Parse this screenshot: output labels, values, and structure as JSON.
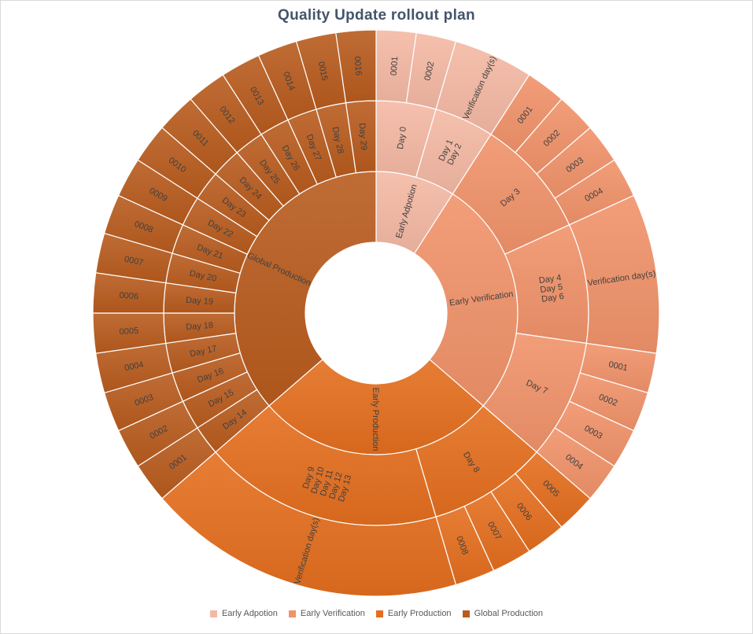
{
  "chart_data": {
    "type": "sunburst",
    "title": "Quality Update rollout plan",
    "legend": {
      "placement": "bottom",
      "entries": [
        "Early Adpotion",
        "Early Verification",
        "Early Production",
        "Global Production"
      ]
    },
    "colors": {
      "Early Adpotion": "#f4b9a4",
      "Early Verification": "#f0936a",
      "Early Production": "#e46f1f",
      "Global Production": "#b85c1e"
    },
    "tree": [
      {
        "name": "Early Adpotion",
        "value": 4,
        "color": "#f4b9a4",
        "children": [
          {
            "name": "Day 0",
            "value": 2,
            "children": [
              {
                "name": "0001",
                "value": 1
              },
              {
                "name": "0002",
                "value": 1
              }
            ]
          },
          {
            "name": "Day 1\nDay 2",
            "value": 2,
            "children": [
              {
                "name": "Verification day(s)",
                "value": 2
              }
            ]
          }
        ]
      },
      {
        "name": "Early Verification",
        "value": 12,
        "color": "#f0936a",
        "children": [
          {
            "name": "Day 3",
            "value": 4,
            "children": [
              {
                "name": "0001",
                "value": 1
              },
              {
                "name": "0002",
                "value": 1
              },
              {
                "name": "0003",
                "value": 1
              },
              {
                "name": "0004",
                "value": 1
              }
            ]
          },
          {
            "name": "Day 4\nDay 5\nDay 6",
            "value": 4,
            "children": [
              {
                "name": "Verification day(s)",
                "value": 4
              }
            ]
          },
          {
            "name": "Day 7",
            "value": 4,
            "children": [
              {
                "name": "0001",
                "value": 1
              },
              {
                "name": "0002",
                "value": 1
              },
              {
                "name": "0003",
                "value": 1
              },
              {
                "name": "0004",
                "value": 1
              }
            ]
          }
        ]
      },
      {
        "name": "Early Production",
        "value": 12,
        "color": "#e46f1f",
        "children": [
          {
            "name": "Day 8",
            "value": 4,
            "children": [
              {
                "name": "0005",
                "value": 1
              },
              {
                "name": "0006",
                "value": 1
              },
              {
                "name": "0007",
                "value": 1
              },
              {
                "name": "0008",
                "value": 1
              }
            ]
          },
          {
            "name": "Day 9\nDay 10\nDay 11\nDay 12\nDay 13",
            "value": 8,
            "children": [
              {
                "name": "Verification day(s)",
                "value": 8
              }
            ]
          }
        ]
      },
      {
        "name": "Global Production",
        "value": 16,
        "color": "#b85c1e",
        "children": [
          {
            "name": "Day 14",
            "value": 1,
            "children": [
              {
                "name": "0001",
                "value": 1
              }
            ]
          },
          {
            "name": "Day 15",
            "value": 1,
            "children": [
              {
                "name": "0002",
                "value": 1
              }
            ]
          },
          {
            "name": "Day 16",
            "value": 1,
            "children": [
              {
                "name": "0003",
                "value": 1
              }
            ]
          },
          {
            "name": "Day 17",
            "value": 1,
            "children": [
              {
                "name": "0004",
                "value": 1
              }
            ]
          },
          {
            "name": "Day 18",
            "value": 1,
            "children": [
              {
                "name": "0005",
                "value": 1
              }
            ]
          },
          {
            "name": "Day 19",
            "value": 1,
            "children": [
              {
                "name": "0006",
                "value": 1
              }
            ]
          },
          {
            "name": "Day 20",
            "value": 1,
            "children": [
              {
                "name": "0007",
                "value": 1
              }
            ]
          },
          {
            "name": "Day 21",
            "value": 1,
            "children": [
              {
                "name": "0008",
                "value": 1
              }
            ]
          },
          {
            "name": "Day 22",
            "value": 1,
            "children": [
              {
                "name": "0009",
                "value": 1
              }
            ]
          },
          {
            "name": "Day 23",
            "value": 1,
            "children": [
              {
                "name": "0010",
                "value": 1
              }
            ]
          },
          {
            "name": "Day 24",
            "value": 1,
            "children": [
              {
                "name": "0011",
                "value": 1
              }
            ]
          },
          {
            "name": "Day 25",
            "value": 1,
            "children": [
              {
                "name": "0012",
                "value": 1
              }
            ]
          },
          {
            "name": "Day 26",
            "value": 1,
            "children": [
              {
                "name": "0013",
                "value": 1
              }
            ]
          },
          {
            "name": "Day 27",
            "value": 1,
            "children": [
              {
                "name": "0014",
                "value": 1
              }
            ]
          },
          {
            "name": "Day 28",
            "value": 1,
            "children": [
              {
                "name": "0015",
                "value": 1
              }
            ]
          },
          {
            "name": "Day 29",
            "value": 1,
            "children": [
              {
                "name": "0016",
                "value": 1
              }
            ]
          }
        ]
      }
    ]
  }
}
